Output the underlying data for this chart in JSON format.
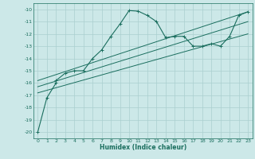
{
  "xlabel": "Humidex (Indice chaleur)",
  "ylabel": "",
  "bg_color": "#cce8e8",
  "grid_color": "#aacfcf",
  "line_color": "#1a6e5e",
  "xlim": [
    -0.5,
    23.5
  ],
  "ylim": [
    -20.5,
    -9.5
  ],
  "xticks": [
    0,
    1,
    2,
    3,
    4,
    5,
    6,
    7,
    8,
    9,
    10,
    11,
    12,
    13,
    14,
    15,
    16,
    17,
    18,
    19,
    20,
    21,
    22,
    23
  ],
  "yticks": [
    -20,
    -19,
    -18,
    -17,
    -16,
    -15,
    -14,
    -13,
    -12,
    -11,
    -10
  ],
  "series": [
    {
      "x": [
        0,
        1,
        2,
        2,
        3,
        4,
        5,
        6,
        7,
        8,
        9,
        10,
        11,
        12,
        13,
        14,
        15,
        16,
        17,
        18,
        19,
        20,
        21,
        22,
        23
      ],
      "y": [
        -20.0,
        -17.2,
        -16.0,
        -15.8,
        -15.2,
        -15.0,
        -15.0,
        -14.0,
        -13.3,
        -12.2,
        -11.2,
        -10.1,
        -10.15,
        -10.5,
        -11.0,
        -12.3,
        -12.2,
        -12.2,
        -13.0,
        -13.0,
        -12.8,
        -13.0,
        -12.2,
        -10.5,
        -10.2
      ],
      "marker": true
    },
    {
      "x": [
        0,
        23
      ],
      "y": [
        -15.8,
        -10.2
      ],
      "marker": false
    },
    {
      "x": [
        0,
        23
      ],
      "y": [
        -16.3,
        -11.0
      ],
      "marker": false
    },
    {
      "x": [
        0,
        23
      ],
      "y": [
        -16.8,
        -12.0
      ],
      "marker": false
    }
  ]
}
